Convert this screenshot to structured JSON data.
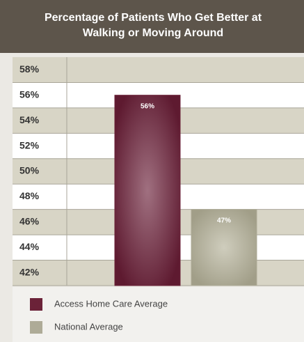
{
  "chart_data": {
    "type": "bar",
    "title": "Percentage of Patients Who Get Better at Walking or Moving Around",
    "series": [
      {
        "name": "Access Home Care Average",
        "color": "#6b2238",
        "values": [
          56
        ],
        "value_labels": [
          "56%"
        ]
      },
      {
        "name": "National Average",
        "color": "#aeab97",
        "values": [
          47
        ],
        "value_labels": [
          "47%"
        ]
      }
    ],
    "ylim": [
      41,
      59
    ],
    "yticks": [
      {
        "value": 42,
        "label": "42%"
      },
      {
        "value": 44,
        "label": "44%"
      },
      {
        "value": 46,
        "label": "46%"
      },
      {
        "value": 48,
        "label": "48%"
      },
      {
        "value": 50,
        "label": "50%"
      },
      {
        "value": 52,
        "label": "52%"
      },
      {
        "value": 54,
        "label": "54%"
      },
      {
        "value": 56,
        "label": "56%"
      },
      {
        "value": 58,
        "label": "58%"
      }
    ],
    "grid": true,
    "legend": "bottom"
  }
}
